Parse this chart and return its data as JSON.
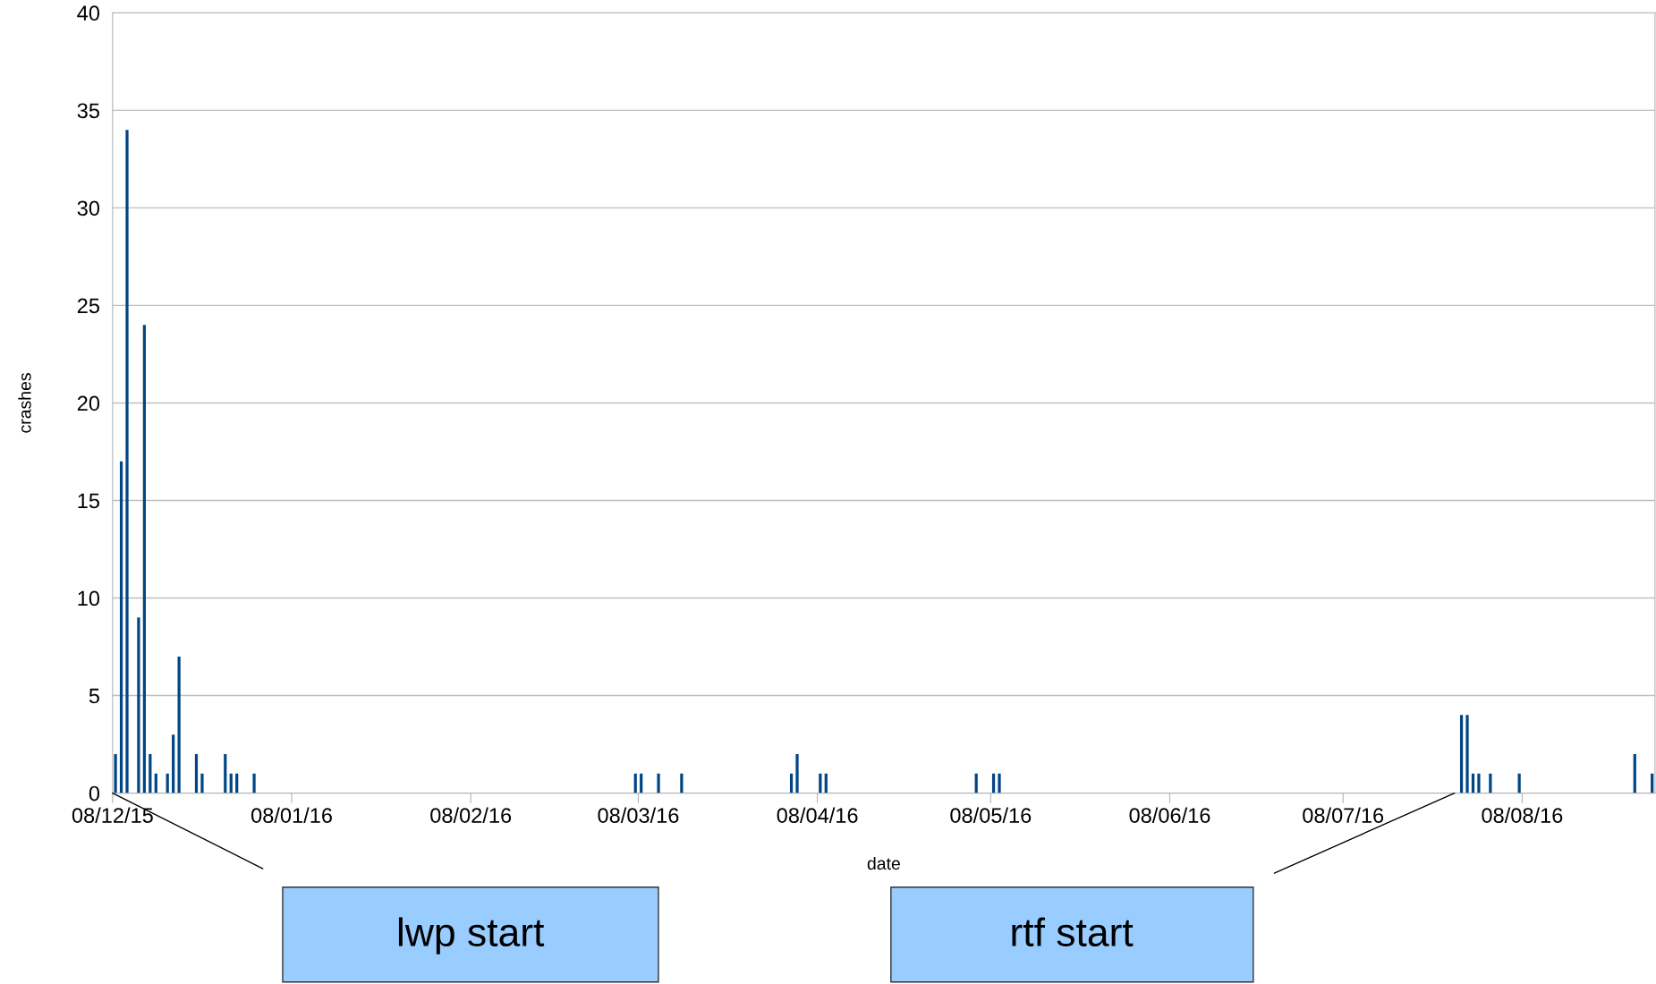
{
  "chart_data": {
    "type": "bar",
    "xlabel": "date",
    "ylabel": "crashes",
    "x": [
      "2015-12-08",
      "2015-12-09",
      "2015-12-10",
      "2015-12-12",
      "2015-12-13",
      "2015-12-14",
      "2015-12-15",
      "2015-12-17",
      "2015-12-18",
      "2015-12-19",
      "2015-12-22",
      "2015-12-23",
      "2015-12-27",
      "2015-12-28",
      "2015-12-29",
      "2016-01-01",
      "2016-03-07",
      "2016-03-08",
      "2016-03-11",
      "2016-03-15",
      "2016-04-03",
      "2016-04-04",
      "2016-04-08",
      "2016-04-09",
      "2016-05-05",
      "2016-05-08",
      "2016-05-09",
      "2016-07-28",
      "2016-07-29",
      "2016-07-30",
      "2016-07-31",
      "2016-08-02",
      "2016-08-07",
      "2016-08-27",
      "2016-08-30"
    ],
    "values": [
      2,
      17,
      34,
      9,
      24,
      2,
      1,
      1,
      3,
      7,
      2,
      1,
      2,
      1,
      1,
      1,
      1,
      1,
      1,
      1,
      1,
      2,
      1,
      1,
      1,
      1,
      1,
      4,
      4,
      1,
      1,
      1,
      1,
      2,
      1
    ],
    "color": "#004586",
    "xlim": [
      "2015-12-08",
      "2016-08-31"
    ],
    "xticks": [
      {
        "value": "2015-12-08",
        "label": "08/12/15"
      },
      {
        "value": "2016-01-08",
        "label": "08/01/16"
      },
      {
        "value": "2016-02-08",
        "label": "08/02/16"
      },
      {
        "value": "2016-03-08",
        "label": "08/03/16"
      },
      {
        "value": "2016-04-08",
        "label": "08/04/16"
      },
      {
        "value": "2016-05-08",
        "label": "08/05/16"
      },
      {
        "value": "2016-06-08",
        "label": "08/06/16"
      },
      {
        "value": "2016-07-08",
        "label": "08/07/16"
      },
      {
        "value": "2016-08-08",
        "label": "08/08/16"
      }
    ],
    "ylim": [
      0,
      40
    ],
    "yticks": [
      0,
      5,
      10,
      15,
      20,
      25,
      30,
      35,
      40
    ],
    "grid": "y",
    "legend": false,
    "annotations": [
      "lwp start",
      "rtf start"
    ]
  }
}
